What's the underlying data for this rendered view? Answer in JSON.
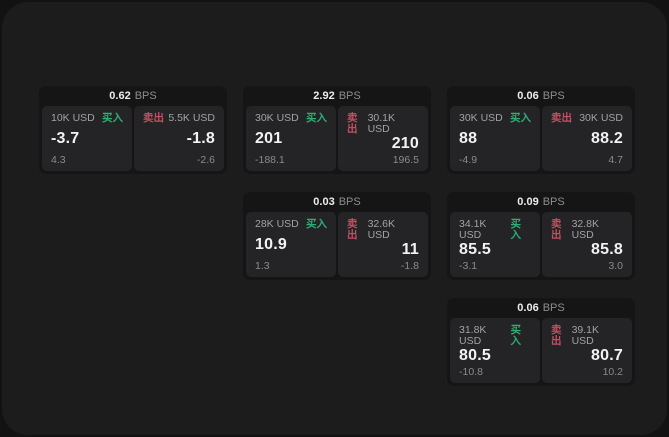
{
  "labels": {
    "bps_unit": "BPS",
    "buy_tag": "买入",
    "sell_tag": "卖出"
  },
  "colors": {
    "page_bg": "#121212",
    "panel_bg": "#1c1c1d",
    "card_bg": "#151516",
    "side_bg": "#242426",
    "buy_accent": "#2fae74",
    "sell_accent": "#c44e62"
  },
  "cards": [
    {
      "bps": "0.62",
      "col": 1,
      "row": 1,
      "buy": {
        "amount": "10K USD",
        "value": "-3.7",
        "change": "4.3"
      },
      "sell": {
        "amount": "5.5K USD",
        "value": "-1.8",
        "change": "-2.6"
      }
    },
    {
      "bps": "2.92",
      "col": 2,
      "row": 1,
      "buy": {
        "amount": "30K USD",
        "value": "201",
        "change": "-188.1"
      },
      "sell": {
        "amount": "30.1K USD",
        "value": "210",
        "change": "196.5"
      }
    },
    {
      "bps": "0.06",
      "col": 3,
      "row": 1,
      "buy": {
        "amount": "30K USD",
        "value": "88",
        "change": "-4.9"
      },
      "sell": {
        "amount": "30K USD",
        "value": "88.2",
        "change": "4.7"
      }
    },
    {
      "bps": "0.03",
      "col": 2,
      "row": 2,
      "buy": {
        "amount": "28K USD",
        "value": "10.9",
        "change": "1.3"
      },
      "sell": {
        "amount": "32.6K USD",
        "value": "11",
        "change": "-1.8"
      }
    },
    {
      "bps": "0.09",
      "col": 3,
      "row": 2,
      "buy": {
        "amount": "34.1K USD",
        "value": "85.5",
        "change": "-3.1"
      },
      "sell": {
        "amount": "32.8K USD",
        "value": "85.8",
        "change": "3.0"
      }
    },
    {
      "bps": "0.06",
      "col": 3,
      "row": 3,
      "buy": {
        "amount": "31.8K USD",
        "value": "80.5",
        "change": "-10.8"
      },
      "sell": {
        "amount": "39.1K USD",
        "value": "80.7",
        "change": "10.2"
      }
    }
  ]
}
